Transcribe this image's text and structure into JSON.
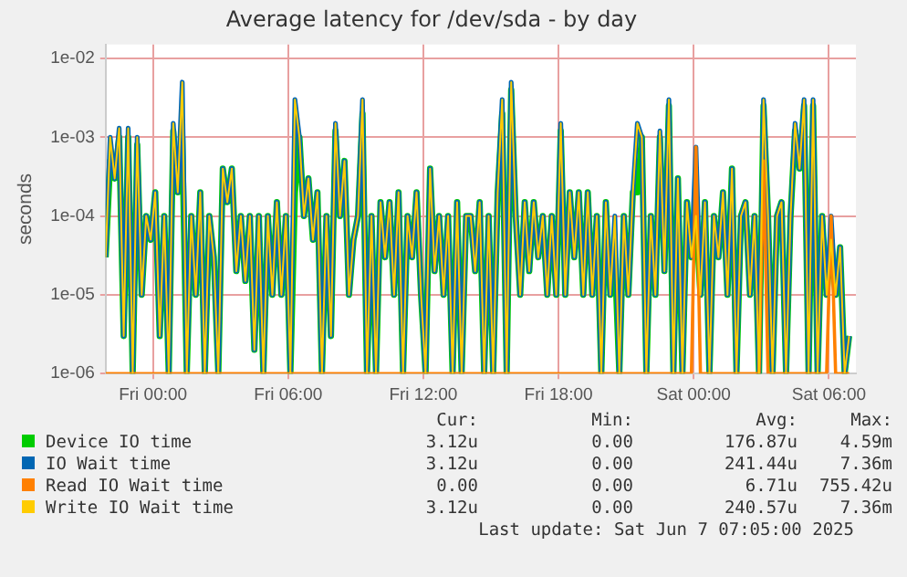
{
  "chart_data": {
    "type": "line",
    "title": "Average latency for /dev/sda - by day",
    "ylabel": "seconds",
    "x": [
      "2025-06-05T21:54",
      "2025-06-05T22:06",
      "2025-06-05T22:18",
      "2025-06-05T22:30",
      "2025-06-05T22:42",
      "2025-06-05T22:54",
      "2025-06-05T23:06",
      "2025-06-05T23:18",
      "2025-06-05T23:30",
      "2025-06-05T23:42",
      "2025-06-05T23:54",
      "2025-06-06T00:06",
      "2025-06-06T00:18",
      "2025-06-06T00:30",
      "2025-06-06T00:42",
      "2025-06-06T00:54",
      "2025-06-06T01:06",
      "2025-06-06T01:18",
      "2025-06-06T01:30",
      "2025-06-06T01:42",
      "2025-06-06T01:54",
      "2025-06-06T02:06",
      "2025-06-06T02:18",
      "2025-06-06T02:30",
      "2025-06-06T02:42",
      "2025-06-06T02:54",
      "2025-06-06T03:06",
      "2025-06-06T03:18",
      "2025-06-06T03:30",
      "2025-06-06T03:42",
      "2025-06-06T03:54",
      "2025-06-06T04:06",
      "2025-06-06T04:18",
      "2025-06-06T04:30",
      "2025-06-06T04:42",
      "2025-06-06T04:54",
      "2025-06-06T05:06",
      "2025-06-06T05:18",
      "2025-06-06T05:30",
      "2025-06-06T05:42",
      "2025-06-06T05:54",
      "2025-06-06T06:06",
      "2025-06-06T06:18",
      "2025-06-06T06:30",
      "2025-06-06T06:42",
      "2025-06-06T06:54",
      "2025-06-06T07:06",
      "2025-06-06T07:18",
      "2025-06-06T07:30",
      "2025-06-06T07:42",
      "2025-06-06T07:54",
      "2025-06-06T08:06",
      "2025-06-06T08:18",
      "2025-06-06T08:30",
      "2025-06-06T08:42",
      "2025-06-06T08:54",
      "2025-06-06T09:06",
      "2025-06-06T09:18",
      "2025-06-06T09:30",
      "2025-06-06T09:42",
      "2025-06-06T09:54",
      "2025-06-06T10:06",
      "2025-06-06T10:18",
      "2025-06-06T10:30",
      "2025-06-06T10:42",
      "2025-06-06T10:54",
      "2025-06-06T11:06",
      "2025-06-06T11:18",
      "2025-06-06T11:30",
      "2025-06-06T11:42",
      "2025-06-06T11:54",
      "2025-06-06T12:06",
      "2025-06-06T12:18",
      "2025-06-06T12:30",
      "2025-06-06T12:42",
      "2025-06-06T12:54",
      "2025-06-06T13:06",
      "2025-06-06T13:18",
      "2025-06-06T13:30",
      "2025-06-06T13:42",
      "2025-06-06T13:54",
      "2025-06-06T14:06",
      "2025-06-06T14:18",
      "2025-06-06T14:30",
      "2025-06-06T14:42",
      "2025-06-06T14:54",
      "2025-06-06T15:06",
      "2025-06-06T15:18",
      "2025-06-06T15:30",
      "2025-06-06T15:42",
      "2025-06-06T15:54",
      "2025-06-06T16:06",
      "2025-06-06T16:18",
      "2025-06-06T16:30",
      "2025-06-06T16:42",
      "2025-06-06T16:54",
      "2025-06-06T17:06",
      "2025-06-06T17:18",
      "2025-06-06T17:30",
      "2025-06-06T17:42",
      "2025-06-06T17:54",
      "2025-06-06T18:06",
      "2025-06-06T18:18",
      "2025-06-06T18:30",
      "2025-06-06T18:42",
      "2025-06-06T18:54",
      "2025-06-06T19:06",
      "2025-06-06T19:18",
      "2025-06-06T19:30",
      "2025-06-06T19:42",
      "2025-06-06T19:54",
      "2025-06-06T20:06",
      "2025-06-06T20:18",
      "2025-06-06T20:30",
      "2025-06-06T20:42",
      "2025-06-06T20:54",
      "2025-06-06T21:06",
      "2025-06-06T21:18",
      "2025-06-06T21:30",
      "2025-06-06T21:42",
      "2025-06-06T21:54",
      "2025-06-06T22:06",
      "2025-06-06T22:18",
      "2025-06-06T22:30",
      "2025-06-06T22:42",
      "2025-06-06T22:54",
      "2025-06-06T23:06",
      "2025-06-06T23:18",
      "2025-06-06T23:30",
      "2025-06-06T23:42",
      "2025-06-06T23:54",
      "2025-06-07T00:06",
      "2025-06-07T00:18",
      "2025-06-07T00:30",
      "2025-06-07T00:42",
      "2025-06-07T00:54",
      "2025-06-07T01:06",
      "2025-06-07T01:18",
      "2025-06-07T01:30",
      "2025-06-07T01:42",
      "2025-06-07T01:54",
      "2025-06-07T02:06",
      "2025-06-07T02:18",
      "2025-06-07T02:30",
      "2025-06-07T02:42",
      "2025-06-07T02:54",
      "2025-06-07T03:06",
      "2025-06-07T03:18",
      "2025-06-07T03:30",
      "2025-06-07T03:42",
      "2025-06-07T03:54",
      "2025-06-07T04:06",
      "2025-06-07T04:18",
      "2025-06-07T04:30",
      "2025-06-07T04:42",
      "2025-06-07T04:54",
      "2025-06-07T05:06",
      "2025-06-07T05:18",
      "2025-06-07T05:30",
      "2025-06-07T05:42",
      "2025-06-07T05:54",
      "2025-06-07T06:06",
      "2025-06-07T06:18",
      "2025-06-07T06:30",
      "2025-06-07T06:42",
      "2025-06-07T06:54"
    ],
    "series": [
      {
        "name": "Device IO time",
        "color": "#00cc00",
        "values": [
          3e-05,
          0.0005,
          0.0003,
          0.001,
          3e-06,
          0.001,
          1e-06,
          0.0008,
          1e-05,
          0.0001,
          5e-05,
          0.0002,
          3e-06,
          0.0001,
          1e-06,
          0.0012,
          0.0002,
          0.001,
          1e-06,
          0.0001,
          1e-05,
          0.0002,
          1e-06,
          0.0001,
          3e-05,
          1e-06,
          0.0004,
          0.00015,
          0.0004,
          2e-05,
          0.0001,
          1.5e-05,
          0.0001,
          2e-06,
          0.0001,
          1e-06,
          0.0001,
          1e-05,
          0.00015,
          1e-05,
          0.0001,
          1e-06,
          0.0002,
          0.001,
          0.0001,
          0.0003,
          5e-05,
          0.0002,
          1e-06,
          0.0001,
          3e-06,
          0.0012,
          0.0001,
          0.0005,
          1e-05,
          5e-05,
          0.0001,
          0.002,
          1e-06,
          0.0001,
          1e-06,
          0.00015,
          3e-05,
          0.00015,
          1e-05,
          0.0002,
          1e-06,
          0.0001,
          3e-05,
          0.0002,
          1e-05,
          1e-06,
          0.0004,
          2e-05,
          0.0001,
          1e-05,
          0.0001,
          1e-06,
          0.00015,
          1e-06,
          0.0001,
          0.0001,
          2e-05,
          0.00015,
          1e-06,
          0.0001,
          1e-06,
          0.0002,
          0.002,
          1e-06,
          0.004,
          0.0001,
          1e-05,
          0.00015,
          2e-05,
          0.00015,
          3e-05,
          0.0001,
          1e-05,
          0.0001,
          1e-05,
          0.0012,
          1e-05,
          0.0002,
          3e-05,
          0.0002,
          1e-05,
          0.0002,
          1e-05,
          0.0001,
          1e-06,
          0.00015,
          1e-05,
          3e-05,
          1e-06,
          0.0001,
          1e-05,
          0.0002,
          0.0002,
          0.001,
          1e-06,
          0.0001,
          1e-05,
          0.001,
          2e-05,
          0.0025,
          1e-06,
          0.0003,
          1e-06,
          0.00015,
          3e-05,
          0.0001,
          1e-05,
          0.00015,
          1e-06,
          0.0001,
          3e-05,
          0.0002,
          1e-05,
          0.0004,
          1e-06,
          0.0001,
          0.00015,
          1e-05,
          0.0001,
          1e-06,
          0.0025,
          0.0001,
          1e-06,
          0.0001,
          0.00015,
          1e-06,
          0.0001,
          0.0012,
          0.0004,
          0.0025,
          1e-06,
          0.0025,
          1e-06,
          0.0001,
          1e-05,
          5e-05,
          1e-05,
          4e-05,
          1e-06,
          3e-06
        ]
      },
      {
        "name": "IO Wait time",
        "color": "#0066b3",
        "values": [
          3e-05,
          0.001,
          0.0003,
          0.0013,
          3e-06,
          0.0013,
          1e-06,
          0.001,
          1e-05,
          0.0001,
          5e-05,
          0.0002,
          3e-06,
          0.0001,
          1e-06,
          0.0015,
          0.0002,
          0.005,
          1e-06,
          0.0001,
          1e-05,
          0.0002,
          1e-06,
          0.0001,
          3e-05,
          1e-06,
          0.0004,
          0.00015,
          0.0004,
          2e-05,
          0.0001,
          1.5e-05,
          0.0001,
          2e-06,
          0.0001,
          1e-06,
          0.0001,
          1e-05,
          0.00015,
          1e-05,
          0.0001,
          1e-06,
          0.003,
          0.001,
          0.0001,
          0.0003,
          5e-05,
          0.0002,
          1e-06,
          0.0001,
          3e-06,
          0.0015,
          0.0001,
          0.0005,
          1e-05,
          5e-05,
          0.0001,
          0.003,
          1e-06,
          0.0001,
          1e-06,
          0.00015,
          3e-05,
          0.00015,
          1e-05,
          0.0002,
          1e-06,
          0.0001,
          3e-05,
          0.0002,
          1e-05,
          1e-06,
          0.0004,
          2e-05,
          0.0001,
          1e-05,
          0.0001,
          1e-06,
          0.00015,
          1e-06,
          0.0001,
          0.0001,
          2e-05,
          0.00015,
          1e-06,
          0.0001,
          1e-06,
          0.0002,
          0.003,
          1e-06,
          0.005,
          0.0001,
          1e-05,
          0.00015,
          2e-05,
          0.00015,
          3e-05,
          0.0001,
          1e-05,
          0.0001,
          1e-05,
          0.0015,
          1e-05,
          0.0002,
          3e-05,
          0.0002,
          1e-05,
          0.0002,
          1e-05,
          0.0001,
          1e-06,
          0.00015,
          1e-05,
          0.0001,
          1e-06,
          0.0001,
          1e-05,
          0.0002,
          0.0015,
          0.001,
          1e-06,
          0.0001,
          1e-05,
          0.0012,
          2e-05,
          0.003,
          1e-06,
          0.0003,
          1e-06,
          0.00015,
          3e-05,
          0.00075,
          1e-05,
          0.00015,
          1e-06,
          0.0001,
          3e-05,
          0.0002,
          1e-05,
          0.0004,
          1e-06,
          0.0001,
          0.00015,
          1e-05,
          0.0001,
          1e-06,
          0.003,
          0.0001,
          1e-06,
          0.0001,
          0.00015,
          1e-06,
          0.0001,
          0.0015,
          0.0004,
          0.003,
          1e-06,
          0.003,
          1e-06,
          0.0001,
          1e-05,
          0.0001,
          1e-05,
          4e-05,
          1e-06,
          3e-06
        ]
      },
      {
        "name": "Read IO Wait time",
        "color": "#ff8000",
        "values": [
          1e-06,
          1e-06,
          1e-06,
          1e-06,
          1e-06,
          1e-06,
          1e-06,
          1e-06,
          1e-06,
          1e-06,
          1e-06,
          1e-06,
          1e-06,
          1e-06,
          1e-06,
          1e-06,
          1e-06,
          1e-06,
          1e-06,
          1e-06,
          1e-06,
          1e-06,
          1e-06,
          1e-06,
          1e-06,
          1e-06,
          1e-06,
          1e-06,
          1e-06,
          1e-06,
          1e-06,
          1e-06,
          1e-06,
          1e-06,
          1e-06,
          1e-06,
          1e-06,
          1e-06,
          1e-06,
          1e-06,
          1e-06,
          1e-06,
          1e-06,
          1e-06,
          1e-06,
          1e-06,
          1e-06,
          1e-06,
          1e-06,
          1e-06,
          1e-06,
          1e-06,
          1e-06,
          1e-06,
          1e-06,
          1e-06,
          1e-06,
          1e-06,
          1e-06,
          1e-06,
          1e-06,
          1e-06,
          1e-06,
          1e-06,
          1e-06,
          1e-06,
          1e-06,
          1e-06,
          1e-06,
          1e-06,
          1e-06,
          1e-06,
          1e-06,
          1e-06,
          1e-06,
          1e-06,
          1e-06,
          1e-06,
          1e-06,
          1e-06,
          1e-06,
          1e-06,
          1e-06,
          1e-06,
          1e-06,
          1e-06,
          1e-06,
          1e-06,
          1e-06,
          1e-06,
          1e-06,
          1e-06,
          1e-06,
          1e-06,
          1e-06,
          1e-06,
          1e-06,
          1e-06,
          1e-06,
          1e-06,
          1e-06,
          1e-06,
          1e-06,
          1e-06,
          1e-06,
          1e-06,
          1e-06,
          1e-06,
          1e-06,
          1e-06,
          1e-06,
          1e-06,
          1e-06,
          1e-06,
          1e-06,
          1e-06,
          1e-06,
          1e-06,
          1e-06,
          1e-06,
          1e-06,
          1e-06,
          1e-06,
          1e-06,
          1e-06,
          1e-06,
          1e-06,
          1e-06,
          1e-06,
          1e-06,
          1e-06,
          0.00075,
          1e-06,
          1e-06,
          1e-06,
          1e-06,
          1e-06,
          1e-06,
          1e-06,
          1e-06,
          1e-06,
          1e-06,
          1e-06,
          1e-06,
          1e-06,
          1e-06,
          0.0005,
          1e-06,
          1e-06,
          1e-06,
          1e-06,
          1e-06,
          1e-06,
          1e-06,
          1e-06,
          1e-06,
          1e-06,
          1e-06,
          1e-06,
          1e-06,
          1e-06,
          0.0001,
          1e-06,
          1e-06,
          1e-06,
          1e-06
        ]
      },
      {
        "name": "Write IO Wait time",
        "color": "#ffcc00",
        "values": [
          3e-05,
          0.001,
          0.0003,
          0.0013,
          3e-06,
          0.0013,
          1e-06,
          0.001,
          1e-05,
          0.0001,
          5e-05,
          0.0002,
          3e-06,
          0.0001,
          1e-06,
          0.0015,
          0.0002,
          0.005,
          1e-06,
          0.0001,
          1e-05,
          0.0002,
          1e-06,
          0.0001,
          3e-05,
          1e-06,
          0.0004,
          0.00015,
          0.0004,
          2e-05,
          0.0001,
          1.5e-05,
          0.0001,
          2e-06,
          0.0001,
          1e-06,
          0.0001,
          1e-05,
          0.00015,
          1e-05,
          0.0001,
          1e-06,
          0.003,
          0.001,
          0.0001,
          0.0003,
          5e-05,
          0.0002,
          1e-06,
          0.0001,
          3e-06,
          0.0015,
          0.0001,
          0.0005,
          1e-05,
          5e-05,
          0.0001,
          0.003,
          1e-06,
          0.0001,
          1e-06,
          0.00015,
          3e-05,
          0.00015,
          1e-05,
          0.0002,
          1e-06,
          0.0001,
          3e-05,
          0.0002,
          1e-05,
          1e-06,
          0.0004,
          2e-05,
          0.0001,
          1e-05,
          0.0001,
          1e-06,
          0.00015,
          1e-06,
          0.0001,
          0.0001,
          2e-05,
          0.00015,
          1e-06,
          0.0001,
          1e-06,
          0.0002,
          0.003,
          1e-06,
          0.005,
          0.0001,
          1e-05,
          0.00015,
          2e-05,
          0.00015,
          3e-05,
          0.0001,
          1e-05,
          0.0001,
          1e-05,
          0.0015,
          1e-05,
          0.0002,
          3e-05,
          0.0002,
          1e-05,
          0.0002,
          1e-05,
          0.0001,
          1e-06,
          0.00015,
          1e-05,
          0.0001,
          1e-06,
          0.0001,
          1e-05,
          0.0002,
          0.0015,
          0.001,
          1e-06,
          0.0001,
          1e-05,
          0.0012,
          2e-05,
          0.003,
          1e-06,
          0.0003,
          1e-06,
          0.00015,
          3e-05,
          0.0001,
          1e-05,
          0.00015,
          1e-06,
          0.0001,
          3e-05,
          0.0002,
          1e-05,
          0.0004,
          1e-06,
          0.0001,
          0.00015,
          1e-05,
          0.0001,
          1e-06,
          0.003,
          0.0001,
          1e-06,
          0.0001,
          0.00015,
          1e-06,
          0.0001,
          0.0015,
          0.0004,
          0.003,
          1e-06,
          0.003,
          1e-06,
          0.0001,
          1e-05,
          5e-05,
          1e-05,
          4e-05,
          1e-06,
          3e-06
        ]
      }
    ],
    "xlim": [
      "2025-06-05T21:54",
      "2025-06-07T07:12"
    ],
    "xticks": [
      {
        "value": "2025-06-06T00:00",
        "label": "Fri 00:00"
      },
      {
        "value": "2025-06-06T06:00",
        "label": "Fri 06:00"
      },
      {
        "value": "2025-06-06T12:00",
        "label": "Fri 12:00"
      },
      {
        "value": "2025-06-06T18:00",
        "label": "Fri 18:00"
      },
      {
        "value": "2025-06-07T00:00",
        "label": "Sat 00:00"
      },
      {
        "value": "2025-06-07T06:00",
        "label": "Sat 06:00"
      }
    ],
    "log": true,
    "ylim": [
      1e-06,
      0.015
    ],
    "yticks": [
      {
        "value": 1e-06,
        "label": "1e-06"
      },
      {
        "value": 1e-05,
        "label": "1e-05"
      },
      {
        "value": 0.0001,
        "label": "1e-04"
      },
      {
        "value": 0.001,
        "label": "1e-03"
      },
      {
        "value": 0.01,
        "label": "1e-02"
      }
    ],
    "grid": true,
    "legend": "bottom",
    "marker": "none",
    "annotations": [
      "Cur:",
      "Min:",
      "Avg:",
      "Max:",
      "3.12u",
      "0.00",
      "176.87u",
      "4.59m",
      "3.12u",
      "0.00",
      "241.44u",
      "7.36m",
      "0.00",
      "0.00",
      "6.71u",
      "755.42u",
      "3.12u",
      "0.00",
      "240.57u",
      "7.36m",
      "Last update:  Sat Jun  7 07:05:00 2025"
    ]
  }
}
